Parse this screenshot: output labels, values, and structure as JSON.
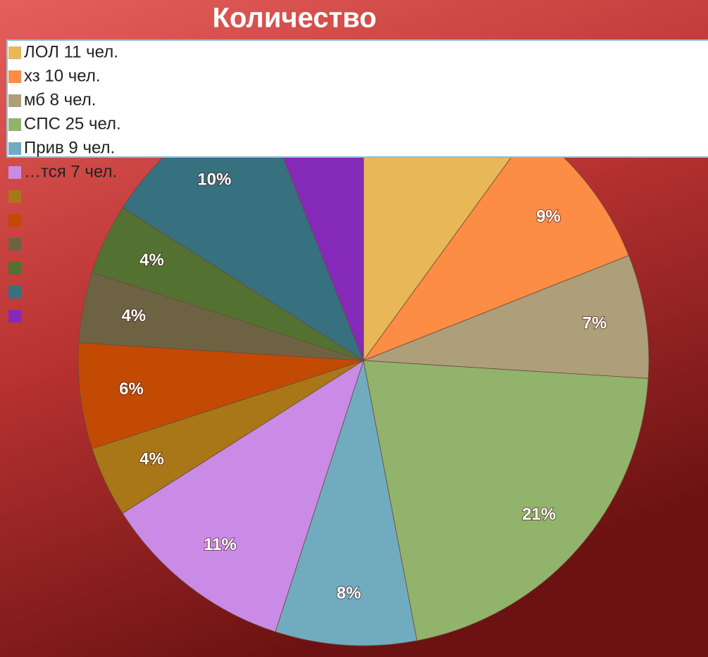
{
  "chart_data": {
    "type": "pie",
    "title": "Количество",
    "categories": [
      "ЛОЛ 11 чел.",
      "хз 10 чел.",
      "мб 8 чел.",
      "СПС 25 чел.",
      "Прив 9 чел.",
      "…тся 7 чел.",
      null,
      null,
      null,
      null,
      null,
      null
    ],
    "values": [
      10,
      9,
      7,
      21,
      8,
      11,
      4,
      6,
      4,
      4,
      10,
      6
    ],
    "value_labels": [
      null,
      "9%",
      "7%",
      "21%",
      "8%",
      "11%",
      "4%",
      "6%",
      "4%",
      "4%",
      "10%",
      null
    ],
    "colors": [
      "#e8b757",
      "#fd8c45",
      "#ad9f79",
      "#91b36c",
      "#71abc0",
      "#c98be6",
      "#a97717",
      "#c24a03",
      "#6d6342",
      "#537232",
      "#37707f",
      "#8529b9"
    ]
  }
}
